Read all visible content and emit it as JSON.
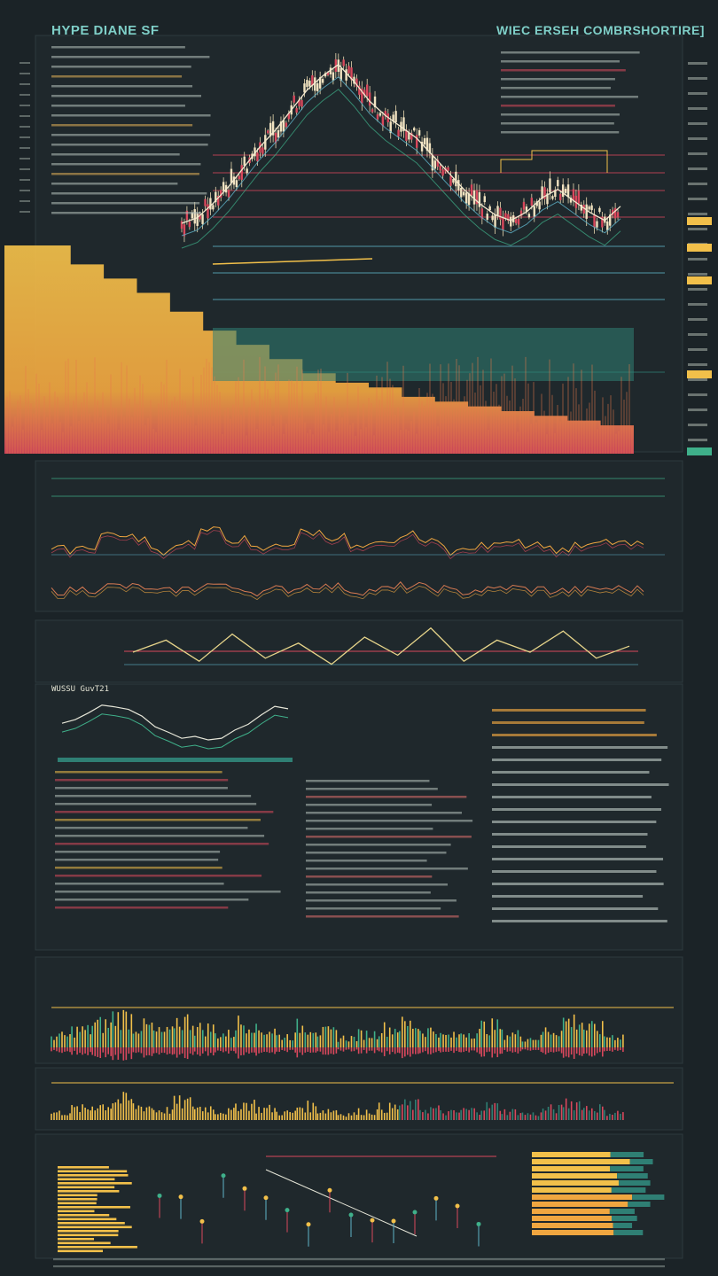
{
  "header": {
    "title_left": "HYPE DIANE SF",
    "title_right": "WIEC ERSEH COMBRSHORTIRE]"
  },
  "colors": {
    "background": "#1b2327",
    "panel": "#1f282c",
    "yellow": "#f2c04a",
    "orange": "#f0a640",
    "red": "#d9485c",
    "teal": "#2f7f74",
    "cyan": "#5fb3c9",
    "green": "#3fb08a",
    "text": "#c9d1c8"
  },
  "panels": {
    "oscillator_title": "",
    "momentum_title": "",
    "mini_title": "WUSSU GuvT21",
    "volume_title": "",
    "bottom_title": ""
  },
  "chart_data": [
    {
      "type": "line",
      "title": "",
      "xlabel": "",
      "ylabel": "",
      "ylim": [
        0,
        100
      ],
      "grid": true,
      "series": [
        {
          "values": [
            40,
            42,
            47,
            53,
            60,
            67,
            73,
            80,
            87,
            92,
            96,
            90,
            83,
            78,
            74,
            70,
            64,
            58,
            52,
            47,
            43,
            41,
            44,
            49,
            52,
            48,
            44,
            41,
            46
          ]
        }
      ]
    },
    {
      "type": "area",
      "title": "",
      "series": [
        {
          "values": [
            88,
            88,
            80,
            74,
            68,
            60,
            52,
            46,
            40,
            34,
            30,
            28,
            24,
            22,
            20,
            18,
            16,
            14,
            12
          ]
        }
      ]
    },
    {
      "type": "line",
      "title": "",
      "series": [
        {
          "values": [
            50,
            52,
            61,
            58,
            49,
            55,
            63,
            57,
            50,
            54,
            62,
            59,
            51,
            53,
            60,
            55,
            49,
            52,
            57,
            54,
            50,
            52,
            55,
            53
          ]
        },
        {
          "values": [
            48,
            50,
            54,
            53,
            47,
            50,
            56,
            52,
            47,
            50,
            55,
            53,
            48,
            50,
            54,
            51,
            47,
            49,
            52,
            50,
            48,
            49,
            51,
            50
          ]
        }
      ]
    },
    {
      "type": "line",
      "title": "",
      "series": [
        {
          "values": [
            50,
            70,
            35,
            80,
            40,
            65,
            30,
            75,
            45,
            90,
            35,
            70,
            50,
            85,
            40,
            60
          ]
        }
      ]
    },
    {
      "type": "bar",
      "title": "",
      "series": [
        {
          "values": [
            30,
            45,
            60,
            80,
            55,
            40,
            70,
            50,
            35,
            65,
            45,
            30,
            55,
            40,
            25,
            35,
            50,
            60,
            45,
            30,
            40,
            55,
            35,
            25,
            45,
            70,
            50,
            30
          ]
        }
      ]
    }
  ]
}
